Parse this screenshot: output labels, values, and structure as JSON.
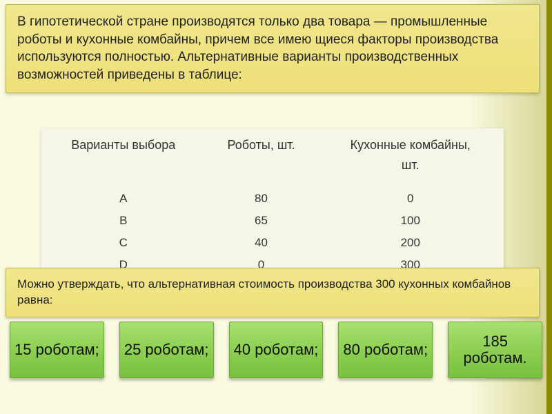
{
  "problem_text": "В гипотетической стране производятся только два товара — промышленные роботы и кухонные комбайны, причем все имею щиеся факторы производства используются полностью. Альтернативные варианты производственных возможностей приведены в таблице:",
  "table": {
    "headers": {
      "col1": "Варианты выбора",
      "col2": "Роботы, шт.",
      "col3_line1": "Кухонные комбайны,",
      "col3_line2": "шт."
    },
    "rows": [
      {
        "variant": "A",
        "robots": "80",
        "combines": "0"
      },
      {
        "variant": "B",
        "robots": "65",
        "combines": "100"
      },
      {
        "variant": "C",
        "robots": "40",
        "combines": "200"
      },
      {
        "variant": "D",
        "robots": "0",
        "combines": "300"
      }
    ]
  },
  "question_text": "Можно утверждать, что альтернативная стоимость производства 300 кухонных комбайнов равна:",
  "answers": [
    "15 роботам;",
    "25 роботам;",
    "40 роботам;",
    "80 роботам;",
    "185 роботам."
  ],
  "colors": {
    "panel_bg": "#eee07a",
    "answer_bg": "#8ed054",
    "accent": "#8a8a00"
  }
}
